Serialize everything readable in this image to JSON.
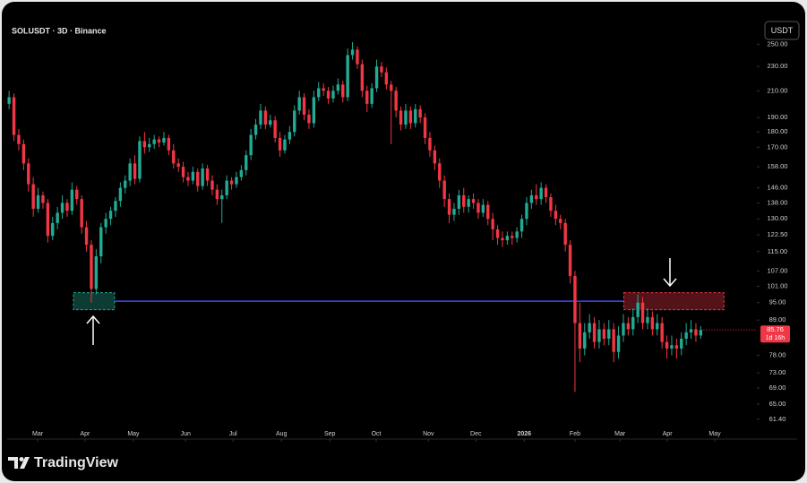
{
  "chart_data": {
    "type": "candlestick",
    "title": "SOLUSDT · 3D · Binance",
    "currency": "USDT",
    "countdown": "1d 16h",
    "brand": "TradingView",
    "up_color": "#22ab94",
    "down_color": "#f23645",
    "log_scale": true,
    "ylim": [
      57,
      274
    ],
    "yticks": [
      {
        "value": 250,
        "label": "250.00"
      },
      {
        "value": 230,
        "label": "230.00"
      },
      {
        "value": 210,
        "label": "210.00"
      },
      {
        "value": 190,
        "label": "190.00"
      },
      {
        "value": 180,
        "label": "180.00"
      },
      {
        "value": 170,
        "label": "170.00"
      },
      {
        "value": 158,
        "label": "158.00"
      },
      {
        "value": 146,
        "label": "146.00"
      },
      {
        "value": 138,
        "label": "138.00"
      },
      {
        "value": 130,
        "label": "130.00"
      },
      {
        "value": 122.5,
        "label": "122.50"
      },
      {
        "value": 115,
        "label": "115.00"
      },
      {
        "value": 107,
        "label": "107.00"
      },
      {
        "value": 101,
        "label": "101.00"
      },
      {
        "value": 95,
        "label": "95.00"
      },
      {
        "value": 89,
        "label": "89.00"
      },
      {
        "value": 78,
        "label": "78.00"
      },
      {
        "value": 73,
        "label": "73.00"
      },
      {
        "value": 69,
        "label": "69.00"
      },
      {
        "value": 65,
        "label": "65.00"
      },
      {
        "value": 61.4,
        "label": "61.40"
      }
    ],
    "xlim": [
      -0.4,
      154.6
    ],
    "xticks": [
      {
        "value": 5.9,
        "label": "Mar"
      },
      {
        "value": 15.7,
        "label": "Apr"
      },
      {
        "value": 25.7,
        "label": "May"
      },
      {
        "value": 36.5,
        "label": "Jun"
      },
      {
        "value": 46.3,
        "label": "Jul"
      },
      {
        "value": 56.3,
        "label": "Aug"
      },
      {
        "value": 66.3,
        "label": "Sep"
      },
      {
        "value": 75.9,
        "label": "Oct"
      },
      {
        "value": 86.7,
        "label": "Nov"
      },
      {
        "value": 96.5,
        "label": "Dec"
      },
      {
        "value": 106.5,
        "label": "2026"
      },
      {
        "value": 117,
        "label": "Feb"
      },
      {
        "value": 126.3,
        "label": "Mar"
      },
      {
        "value": 136.1,
        "label": "Apr"
      },
      {
        "value": 145.9,
        "label": "May"
      }
    ],
    "open": [
      200,
      205,
      178,
      172,
      160,
      148,
      135,
      142,
      138,
      122,
      128,
      133,
      138,
      134,
      145,
      140,
      126,
      118,
      100,
      113,
      126,
      130,
      134,
      139,
      146,
      150,
      160,
      151,
      174,
      170,
      172,
      175,
      173,
      176,
      168,
      160,
      158,
      152,
      150,
      155,
      147,
      157,
      150,
      145,
      140,
      142,
      150,
      148,
      152,
      156,
      165,
      178,
      185,
      195,
      185,
      188,
      176,
      168,
      175,
      180,
      195,
      205,
      192,
      186,
      205,
      212,
      210,
      204,
      210,
      215,
      205,
      240,
      245,
      232,
      210,
      200,
      212,
      230,
      225,
      215,
      210,
      195,
      185,
      195,
      186,
      196,
      190,
      176,
      168,
      160,
      150,
      140,
      132,
      135,
      142,
      136,
      140,
      138,
      133,
      137,
      130,
      125,
      121,
      120,
      122,
      121,
      124,
      130,
      138,
      142,
      140,
      146,
      141,
      134,
      130,
      128,
      118,
      105,
      88,
      80,
      85,
      88,
      82,
      86,
      83,
      86,
      79,
      84,
      88,
      86,
      90,
      95,
      88,
      90,
      86,
      88,
      82,
      80,
      81,
      80,
      83,
      85,
      86,
      84
    ],
    "high": [
      210,
      208,
      182,
      175,
      163,
      152,
      146,
      144,
      140,
      131,
      136,
      142,
      140,
      149,
      147,
      142,
      129,
      120,
      116,
      128,
      133,
      136,
      141,
      149,
      153,
      163,
      165,
      177,
      180,
      176,
      178,
      177,
      180,
      178,
      172,
      163,
      161,
      155,
      158,
      157,
      160,
      159,
      153,
      148,
      145,
      153,
      152,
      155,
      159,
      168,
      182,
      189,
      200,
      198,
      192,
      191,
      180,
      178,
      184,
      199,
      210,
      208,
      196,
      210,
      217,
      216,
      213,
      214,
      220,
      218,
      246,
      252,
      248,
      236,
      214,
      216,
      236,
      234,
      229,
      218,
      213,
      198,
      200,
      198,
      200,
      199,
      193,
      180,
      171,
      163,
      153,
      143,
      138,
      145,
      146,
      142,
      143,
      140,
      140,
      139,
      133,
      127,
      124,
      124,
      124,
      126,
      132,
      141,
      145,
      148,
      149,
      148,
      143,
      137,
      132,
      130,
      120,
      107,
      95,
      88,
      91,
      90,
      89,
      88,
      89,
      88,
      87,
      91,
      90,
      93,
      98,
      97,
      93,
      92,
      91,
      90,
      84,
      84,
      83,
      85,
      88,
      89,
      88,
      87
    ],
    "low": [
      196,
      174,
      168,
      156,
      144,
      131,
      133,
      135,
      119,
      120,
      125,
      130,
      131,
      132,
      137,
      123,
      115,
      95,
      98,
      110,
      123,
      127,
      131,
      136,
      143,
      147,
      148,
      149,
      166,
      167,
      169,
      170,
      171,
      165,
      157,
      155,
      149,
      147,
      148,
      144,
      145,
      147,
      142,
      137,
      128,
      140,
      145,
      146,
      150,
      153,
      162,
      175,
      182,
      182,
      183,
      173,
      164,
      166,
      172,
      177,
      192,
      188,
      182,
      183,
      202,
      206,
      200,
      201,
      207,
      201,
      202,
      236,
      228,
      205,
      194,
      197,
      209,
      221,
      211,
      172,
      190,
      181,
      182,
      182,
      183,
      186,
      172,
      164,
      156,
      146,
      136,
      128,
      129,
      132,
      133,
      133,
      135,
      130,
      131,
      127,
      120,
      118,
      117,
      118,
      118,
      119,
      121,
      127,
      135,
      137,
      137,
      138,
      131,
      127,
      125,
      115,
      102,
      68,
      76,
      78,
      83,
      80,
      80,
      81,
      81,
      76,
      77,
      82,
      84,
      84,
      88,
      86,
      86,
      84,
      84,
      80,
      77,
      78,
      77,
      78,
      81,
      83,
      82,
      83
    ],
    "close": [
      205,
      178,
      172,
      160,
      148,
      135,
      142,
      138,
      122,
      128,
      133,
      138,
      134,
      145,
      140,
      126,
      118,
      100,
      113,
      126,
      130,
      134,
      139,
      146,
      150,
      160,
      151,
      174,
      170,
      172,
      175,
      173,
      176,
      168,
      160,
      158,
      152,
      150,
      155,
      147,
      157,
      150,
      145,
      140,
      142,
      150,
      148,
      152,
      156,
      165,
      178,
      185,
      195,
      185,
      188,
      176,
      168,
      175,
      180,
      195,
      205,
      192,
      186,
      205,
      212,
      210,
      204,
      210,
      215,
      205,
      240,
      245,
      232,
      210,
      200,
      212,
      230,
      225,
      215,
      210,
      195,
      185,
      195,
      186,
      196,
      190,
      176,
      168,
      160,
      150,
      140,
      132,
      135,
      142,
      136,
      140,
      138,
      133,
      137,
      130,
      125,
      121,
      120,
      122,
      121,
      124,
      130,
      138,
      142,
      140,
      146,
      141,
      134,
      130,
      128,
      118,
      105,
      88,
      80,
      85,
      88,
      82,
      86,
      83,
      86,
      79,
      84,
      88,
      86,
      90,
      95,
      88,
      90,
      86,
      88,
      82,
      80,
      81,
      80,
      83,
      85,
      86,
      84,
      85.76
    ],
    "level": {
      "price": 95.5,
      "start": 21.8,
      "end": 127.1,
      "color": "#3b4cff"
    },
    "zones": [
      {
        "low": 92.5,
        "high": 98.6,
        "start": 13.3,
        "end": 21.8,
        "color": "#22ab94"
      },
      {
        "low": 92.5,
        "high": 98.6,
        "start": 127.1,
        "end": 147.8,
        "color": "#f23645"
      }
    ]
  }
}
